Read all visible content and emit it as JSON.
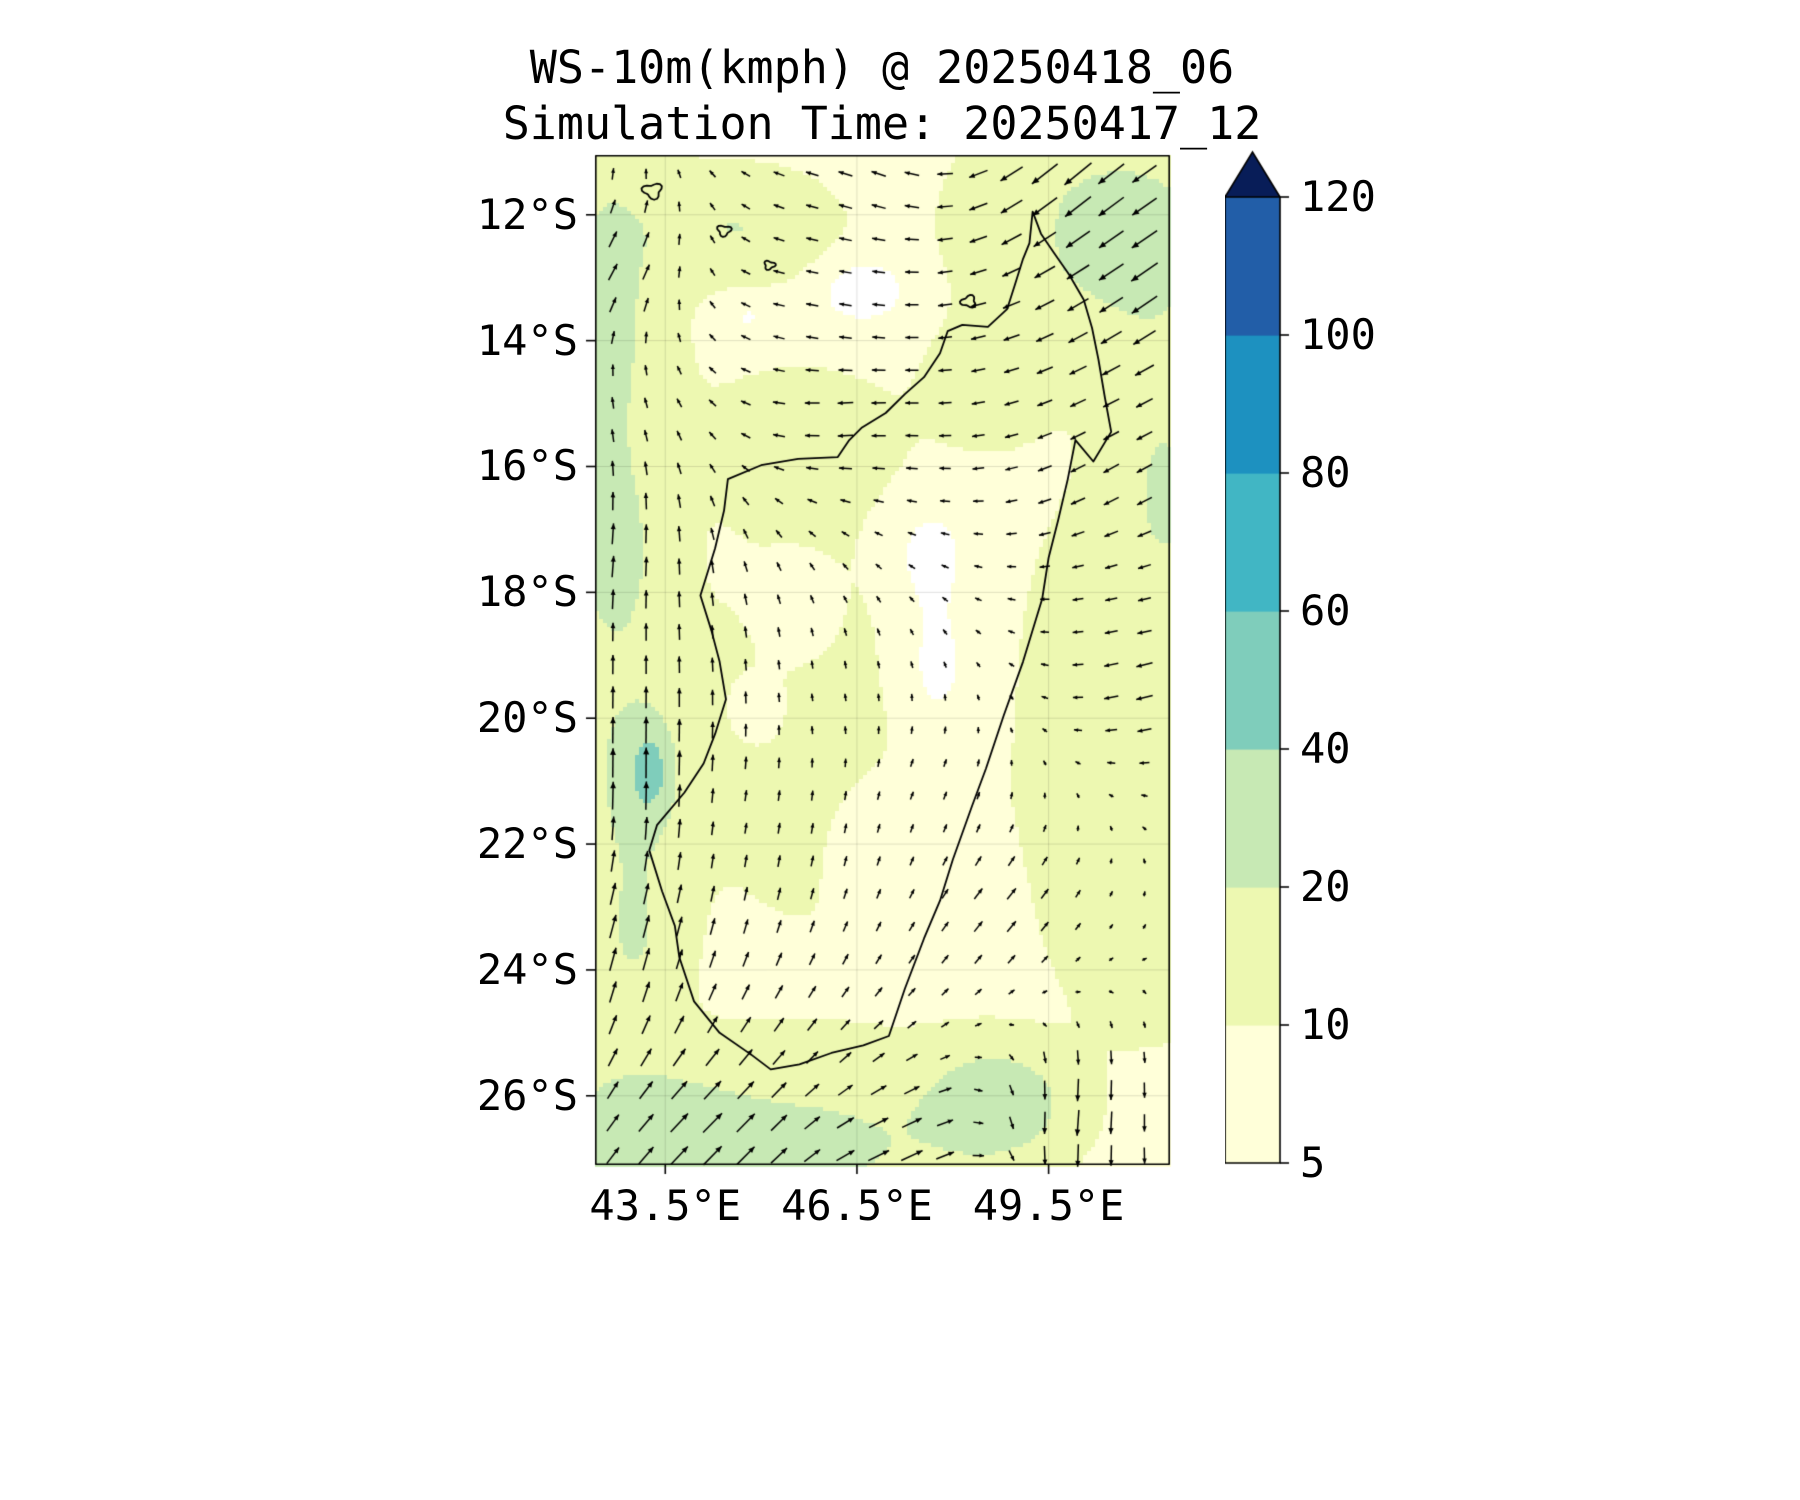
{
  "chart_data": {
    "type": "heatmap",
    "title": "WS-10m(kmph) @ 20250418_06",
    "subtitle": "Simulation Time: 20250417_12",
    "variable": "WS-10m",
    "units": "kmph",
    "lon_range": [
      42.4,
      51.4
    ],
    "lat_range": [
      -27.1,
      -11.05
    ],
    "x_ticks": [
      {
        "value": 43.5,
        "label": "43.5°E"
      },
      {
        "value": 46.5,
        "label": "46.5°E"
      },
      {
        "value": 49.5,
        "label": "49.5°E"
      }
    ],
    "y_ticks": [
      {
        "value": -12,
        "label": "12°S"
      },
      {
        "value": -14,
        "label": "14°S"
      },
      {
        "value": -16,
        "label": "16°S"
      },
      {
        "value": -18,
        "label": "18°S"
      },
      {
        "value": -20,
        "label": "20°S"
      },
      {
        "value": -22,
        "label": "22°S"
      },
      {
        "value": -24,
        "label": "24°S"
      },
      {
        "value": -26,
        "label": "26°S"
      }
    ],
    "colorbar": {
      "levels": [
        5,
        10,
        20,
        40,
        60,
        80,
        100,
        120
      ],
      "colors": [
        "#ffffd9",
        "#edf8b1",
        "#c7e9b4",
        "#7fcdbb",
        "#41b6c4",
        "#1d91c0",
        "#225ea8"
      ],
      "over_color": "#081d58",
      "under_color": "#ffffff",
      "tick_labels": [
        "5",
        "10",
        "20",
        "40",
        "60",
        "80",
        "100",
        "120"
      ]
    },
    "line_color": "#000000",
    "grid_color": "rgba(0,0,0,0.12)",
    "field_base": 8,
    "field_blobs": [
      [
        42.6,
        -13.5,
        0.9,
        3.0,
        15
      ],
      [
        42.7,
        -17.6,
        0.8,
        1.8,
        13
      ],
      [
        43.0,
        -20.9,
        0.8,
        1.5,
        14
      ],
      [
        43.25,
        -20.85,
        0.28,
        0.6,
        34
      ],
      [
        50.6,
        -12.3,
        2.0,
        1.8,
        16
      ],
      [
        51.3,
        -16.5,
        0.9,
        2.5,
        13
      ],
      [
        44.6,
        -12.2,
        1.3,
        0.8,
        12
      ],
      [
        48.6,
        -14.7,
        0.8,
        0.8,
        9
      ],
      [
        45.8,
        -26.8,
        2.6,
        1.3,
        14
      ],
      [
        43.0,
        -26.5,
        1.6,
        1.1,
        15
      ],
      [
        43.0,
        -23.5,
        0.7,
        1.5,
        12
      ],
      [
        48.7,
        -26.1,
        1.0,
        0.8,
        22
      ],
      [
        51.0,
        -23.0,
        1.2,
        1.8,
        9
      ],
      [
        49.9,
        -19.5,
        0.6,
        2.2,
        8
      ],
      [
        46.3,
        -20.3,
        2.6,
        3.2,
        5
      ],
      [
        45.6,
        -15.6,
        1.6,
        1.2,
        5
      ],
      [
        46.6,
        -13.2,
        0.8,
        0.6,
        -6
      ],
      [
        47.7,
        -19.3,
        0.8,
        1.5,
        -7
      ],
      [
        45.6,
        -18.4,
        0.6,
        0.8,
        -5
      ],
      [
        46.9,
        -21.9,
        0.8,
        1.1,
        -6
      ],
      [
        48.9,
        -12.3,
        0.5,
        0.5,
        -5
      ],
      [
        44.8,
        -13.6,
        0.5,
        0.4,
        -4
      ],
      [
        45.0,
        -19.9,
        0.5,
        0.6,
        -4
      ],
      [
        47.6,
        -17.3,
        0.7,
        0.9,
        -5
      ]
    ],
    "wind_regions": [
      [
        49.9,
        -11.4,
        230,
        26
      ],
      [
        51.2,
        -13.0,
        235,
        24
      ],
      [
        46.8,
        -11.3,
        290,
        11
      ],
      [
        42.7,
        -12.8,
        30,
        14
      ],
      [
        42.6,
        -17.4,
        5,
        16
      ],
      [
        43.1,
        -20.8,
        0,
        24
      ],
      [
        42.8,
        -23.5,
        15,
        18
      ],
      [
        44.3,
        -26.5,
        45,
        20
      ],
      [
        47.2,
        -26.9,
        65,
        18
      ],
      [
        49.9,
        -26.4,
        185,
        20
      ],
      [
        51.1,
        -19.5,
        255,
        13
      ],
      [
        50.6,
        -16.0,
        240,
        13
      ],
      [
        46.2,
        -15.2,
        265,
        12
      ],
      [
        46.0,
        -19.8,
        350,
        5
      ],
      [
        48.8,
        -23.0,
        40,
        11
      ],
      [
        44.8,
        -21.5,
        10,
        7
      ],
      [
        47.6,
        -21.0,
        25,
        6
      ],
      [
        45.8,
        -13.2,
        280,
        9
      ]
    ],
    "coastline": [
      [
        49.25,
        -11.95
      ],
      [
        49.38,
        -12.3
      ],
      [
        49.58,
        -12.6
      ],
      [
        49.82,
        -12.95
      ],
      [
        50.05,
        -13.35
      ],
      [
        50.18,
        -13.8
      ],
      [
        50.28,
        -14.3
      ],
      [
        50.38,
        -14.9
      ],
      [
        50.48,
        -15.45
      ],
      [
        50.2,
        -15.92
      ],
      [
        49.92,
        -15.58
      ],
      [
        49.8,
        -16.2
      ],
      [
        49.65,
        -16.85
      ],
      [
        49.5,
        -17.45
      ],
      [
        49.4,
        -18.1
      ],
      [
        49.1,
        -19.1
      ],
      [
        48.8,
        -19.95
      ],
      [
        48.52,
        -20.8
      ],
      [
        48.3,
        -21.4
      ],
      [
        48.0,
        -22.25
      ],
      [
        47.8,
        -22.9
      ],
      [
        47.55,
        -23.5
      ],
      [
        47.25,
        -24.3
      ],
      [
        47.0,
        -25.05
      ],
      [
        46.6,
        -25.2
      ],
      [
        46.1,
        -25.32
      ],
      [
        45.6,
        -25.5
      ],
      [
        45.15,
        -25.58
      ],
      [
        44.85,
        -25.35
      ],
      [
        44.35,
        -25.0
      ],
      [
        43.95,
        -24.5
      ],
      [
        43.72,
        -23.8
      ],
      [
        43.65,
        -23.3
      ],
      [
        43.45,
        -22.75
      ],
      [
        43.25,
        -22.1
      ],
      [
        43.37,
        -21.7
      ],
      [
        43.8,
        -21.18
      ],
      [
        44.1,
        -20.72
      ],
      [
        44.28,
        -20.25
      ],
      [
        44.45,
        -19.7
      ],
      [
        44.35,
        -19.1
      ],
      [
        44.22,
        -18.6
      ],
      [
        44.05,
        -18.05
      ],
      [
        44.28,
        -17.3
      ],
      [
        44.42,
        -16.7
      ],
      [
        44.48,
        -16.2
      ],
      [
        45.0,
        -15.98
      ],
      [
        45.58,
        -15.88
      ],
      [
        46.2,
        -15.85
      ],
      [
        46.38,
        -15.58
      ],
      [
        46.58,
        -15.38
      ],
      [
        46.95,
        -15.15
      ],
      [
        47.25,
        -14.85
      ],
      [
        47.55,
        -14.58
      ],
      [
        47.8,
        -14.2
      ],
      [
        47.92,
        -13.85
      ],
      [
        48.15,
        -13.75
      ],
      [
        48.55,
        -13.78
      ],
      [
        48.85,
        -13.5
      ],
      [
        48.97,
        -13.12
      ],
      [
        49.1,
        -12.7
      ],
      [
        49.2,
        -12.45
      ],
      [
        49.25,
        -11.95
      ]
    ],
    "islands": [
      [
        43.3,
        -11.62,
        0.14
      ],
      [
        44.42,
        -12.25,
        0.1
      ],
      [
        45.13,
        -12.8,
        0.08
      ],
      [
        48.25,
        -13.38,
        0.11
      ]
    ]
  }
}
